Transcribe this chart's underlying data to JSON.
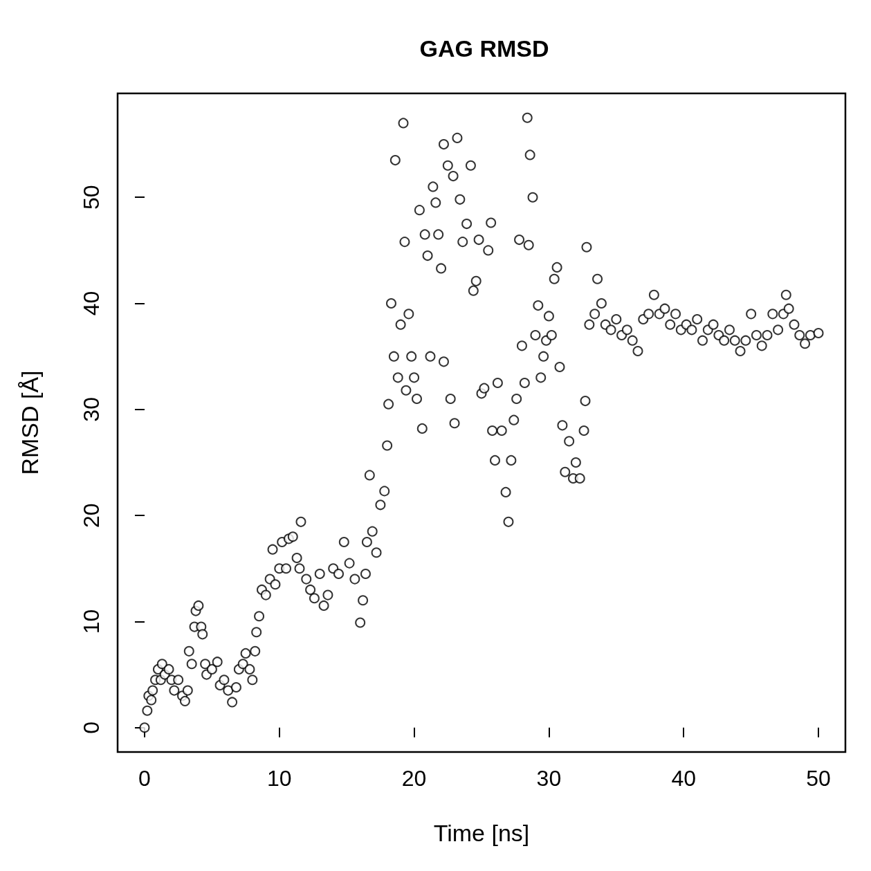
{
  "chart_data": {
    "type": "scatter",
    "title": "GAG RMSD",
    "xlabel": "Time [ns]",
    "ylabel": "RMSD [Å]",
    "marker": "circle",
    "grid": false,
    "xlim": [
      -2,
      52
    ],
    "xticks": [
      0,
      10,
      20,
      30,
      40,
      50
    ],
    "ylim": [
      -2.3,
      59.8
    ],
    "yticks": [
      0,
      10,
      20,
      30,
      40,
      50
    ],
    "series": [
      {
        "color": "#000000",
        "x": [
          0,
          0.2,
          0.3,
          0.5,
          0.6,
          0.8,
          1.0,
          1.2,
          1.3,
          1.5,
          1.8,
          2.0,
          2.2,
          2.5,
          2.8,
          3.0,
          3.2,
          3.3,
          3.5,
          3.7,
          3.8,
          4.0,
          4.2,
          4.3,
          4.5,
          4.6,
          5.0,
          5.4,
          5.6,
          5.9,
          6.2,
          6.5,
          6.8,
          7.0,
          7.3,
          7.5,
          7.8,
          8.0,
          8.2,
          8.3,
          8.5,
          8.7,
          9.0,
          9.3,
          9.5,
          9.7,
          10.0,
          10.2,
          10.5,
          10.7,
          11.0,
          11.3,
          11.5,
          11.6,
          12.0,
          12.3,
          12.6,
          13.0,
          13.3,
          13.6,
          14.0,
          14.4,
          14.8,
          15.2,
          15.6,
          16.0,
          16.2,
          16.4,
          16.5,
          16.7,
          16.9,
          17.2,
          17.5,
          17.8,
          18.0,
          18.1,
          18.3,
          18.5,
          18.6,
          18.8,
          19.0,
          19.2,
          19.3,
          19.4,
          19.6,
          19.8,
          20.0,
          20.2,
          20.4,
          20.6,
          20.8,
          21.0,
          21.2,
          21.4,
          21.6,
          21.8,
          22.0,
          22.2,
          22.2,
          22.5,
          22.7,
          22.9,
          23.0,
          23.2,
          23.4,
          23.6,
          23.9,
          24.2,
          24.4,
          24.6,
          24.8,
          25.0,
          25.2,
          25.5,
          25.7,
          25.8,
          26.0,
          26.2,
          26.5,
          26.8,
          27.0,
          27.2,
          27.4,
          27.6,
          27.8,
          28.0,
          28.2,
          28.4,
          28.5,
          28.6,
          28.8,
          29.0,
          29.2,
          29.4,
          29.6,
          29.8,
          30.0,
          30.2,
          30.4,
          30.6,
          30.8,
          31.0,
          31.2,
          31.5,
          31.8,
          32.0,
          32.3,
          32.6,
          32.7,
          32.8,
          33.0,
          33.4,
          33.6,
          33.9,
          34.2,
          34.6,
          35.0,
          35.4,
          35.8,
          36.2,
          36.6,
          37.0,
          37.4,
          37.8,
          38.2,
          38.6,
          39.0,
          39.4,
          39.8,
          40.2,
          40.6,
          41.0,
          41.4,
          41.8,
          42.2,
          42.6,
          43.0,
          43.4,
          43.8,
          44.2,
          44.6,
          45.0,
          45.4,
          45.8,
          46.2,
          46.6,
          47.0,
          47.4,
          47.6,
          47.8,
          48.2,
          48.6,
          49.0,
          49.4,
          50.0
        ],
        "values": [
          0,
          1.6,
          3,
          2.6,
          3.5,
          4.5,
          5.5,
          4.5,
          6,
          5,
          5.5,
          4.5,
          3.5,
          4.5,
          3,
          2.5,
          3.5,
          7.2,
          6,
          9.5,
          11,
          11.5,
          9.5,
          8.8,
          6,
          5,
          5.5,
          6.2,
          4,
          4.5,
          3.5,
          2.4,
          3.8,
          5.5,
          6,
          7,
          5.5,
          4.5,
          7.2,
          9,
          10.5,
          13,
          12.5,
          14,
          16.8,
          13.5,
          15,
          17.5,
          15,
          17.8,
          18,
          16,
          15,
          19.4,
          14,
          13,
          12.2,
          14.5,
          11.5,
          12.5,
          15,
          14.5,
          17.5,
          15.5,
          14,
          9.9,
          12,
          14.5,
          17.5,
          23.8,
          18.5,
          16.5,
          21,
          22.3,
          26.6,
          30.5,
          40,
          35,
          53.5,
          33,
          38,
          57,
          45.8,
          31.8,
          39,
          35,
          33,
          31,
          48.8,
          28.2,
          46.5,
          44.5,
          35,
          51,
          49.5,
          46.5,
          43.3,
          34.5,
          55,
          53,
          31,
          52,
          28.7,
          55.6,
          49.8,
          45.8,
          47.5,
          53,
          41.2,
          42.1,
          46,
          31.5,
          32,
          45,
          47.6,
          28,
          25.2,
          32.5,
          28,
          22.2,
          19.4,
          25.2,
          29,
          31,
          46,
          36,
          32.5,
          57.5,
          45.5,
          54,
          50,
          37,
          39.8,
          33,
          35,
          36.5,
          38.8,
          37,
          42.3,
          43.4,
          34,
          28.5,
          24.1,
          27,
          23.5,
          25,
          23.5,
          28,
          30.8,
          45.3,
          38,
          39,
          42.3,
          40,
          38,
          37.5,
          38.5,
          37,
          37.5,
          36.5,
          35.5,
          38.5,
          39,
          40.8,
          39,
          39.5,
          38,
          39,
          37.5,
          38,
          37.5,
          38.5,
          36.5,
          37.5,
          38,
          37,
          36.5,
          37.5,
          36.5,
          35.5,
          36.5,
          39,
          37,
          36,
          37,
          39,
          37.5,
          39,
          40.8,
          39.5,
          38,
          37,
          36.2,
          37,
          37.2
        ]
      }
    ]
  }
}
